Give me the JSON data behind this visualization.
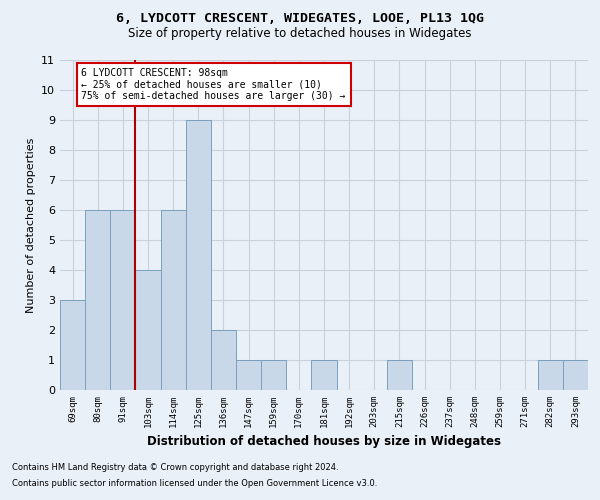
{
  "title": "6, LYDCOTT CRESCENT, WIDEGATES, LOOE, PL13 1QG",
  "subtitle": "Size of property relative to detached houses in Widegates",
  "xlabel": "Distribution of detached houses by size in Widegates",
  "ylabel": "Number of detached properties",
  "categories": [
    "69sqm",
    "80sqm",
    "91sqm",
    "103sqm",
    "114sqm",
    "125sqm",
    "136sqm",
    "147sqm",
    "159sqm",
    "170sqm",
    "181sqm",
    "192sqm",
    "203sqm",
    "215sqm",
    "226sqm",
    "237sqm",
    "248sqm",
    "259sqm",
    "271sqm",
    "282sqm",
    "293sqm"
  ],
  "values": [
    3,
    6,
    6,
    4,
    6,
    9,
    2,
    1,
    1,
    0,
    1,
    0,
    0,
    1,
    0,
    0,
    0,
    0,
    0,
    1,
    1
  ],
  "bar_color": "#c8d8e8",
  "bar_edge_color": "#7aa0be",
  "grid_color": "#c8d0dc",
  "annotation_text": "6 LYDCOTT CRESCENT: 98sqm\n← 25% of detached houses are smaller (10)\n75% of semi-detached houses are larger (30) →",
  "annotation_box_color": "#ffffff",
  "annotation_box_edge": "#cc0000",
  "ylim": [
    0,
    11
  ],
  "yticks": [
    0,
    1,
    2,
    3,
    4,
    5,
    6,
    7,
    8,
    9,
    10,
    11
  ],
  "footnote1": "Contains HM Land Registry data © Crown copyright and database right 2024.",
  "footnote2": "Contains public sector information licensed under the Open Government Licence v3.0.",
  "subject_line_color": "#aa0000",
  "background_color": "#eaf0f8"
}
